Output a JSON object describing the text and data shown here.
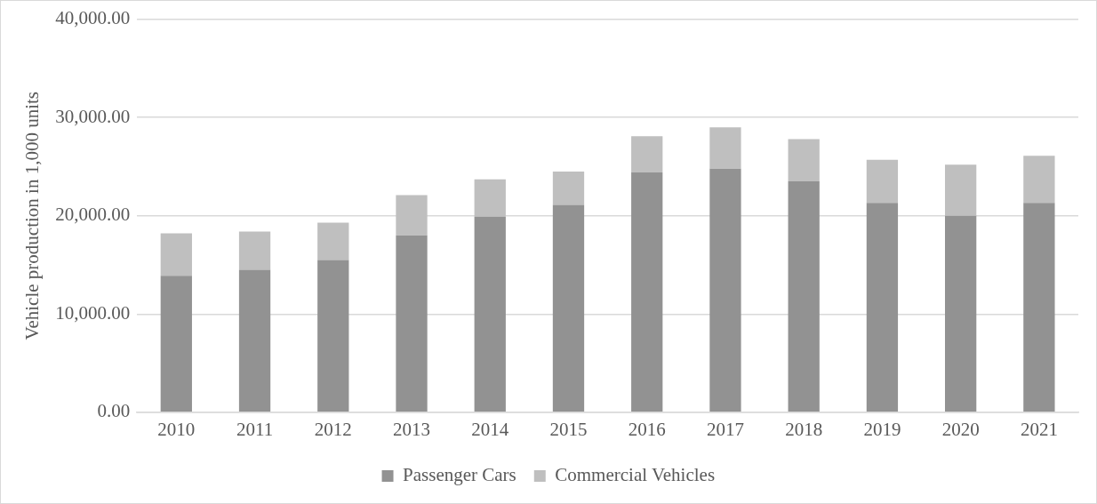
{
  "chart_data": {
    "type": "bar",
    "stacked": true,
    "ylabel": "Vehicle production in 1,000 units",
    "categories": [
      "2010",
      "2011",
      "2012",
      "2013",
      "2014",
      "2015",
      "2016",
      "2017",
      "2018",
      "2019",
      "2020",
      "2021"
    ],
    "series": [
      {
        "name": "Passenger Cars",
        "color": "#929292",
        "values": [
          13900,
          14500,
          15500,
          18000,
          19900,
          21100,
          24400,
          24800,
          23500,
          21300,
          20000,
          21300
        ]
      },
      {
        "name": "Commercial Vehicles",
        "color": "#bfbfbf",
        "values": [
          4300,
          3900,
          3800,
          4100,
          3800,
          3400,
          3700,
          4200,
          4300,
          4400,
          5200,
          4800
        ]
      }
    ],
    "ylim": [
      0,
      40000
    ],
    "yticks": [
      {
        "value": 0,
        "label": "0.00"
      },
      {
        "value": 10000,
        "label": "10,000.00"
      },
      {
        "value": 20000,
        "label": "20,000.00"
      },
      {
        "value": 30000,
        "label": "30,000.00"
      },
      {
        "value": 40000,
        "label": "40,000.00"
      }
    ],
    "grid": "y",
    "legend": "bottom"
  }
}
